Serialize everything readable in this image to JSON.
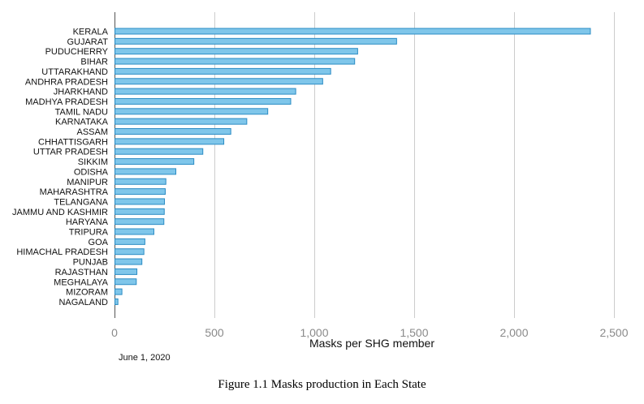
{
  "chart_data": {
    "type": "bar",
    "orientation": "horizontal",
    "categories": [
      "KERALA",
      "GUJARAT",
      "PUDUCHERRY",
      "BIHAR",
      "UTTARAKHAND",
      "ANDHRA PRADESH",
      "JHARKHAND",
      "MADHYA PRADESH",
      "TAMIL NADU",
      "KARNATAKA",
      "ASSAM",
      "CHHATTISGARH",
      "UTTAR PRADESH",
      "SIKKIM",
      "ODISHA",
      "MANIPUR",
      "MAHARASHTRA",
      "TELANGANA",
      "JAMMU AND KASHMIR",
      "HARYANA",
      "TRIPURA",
      "GOA",
      "HIMACHAL PRADESH",
      "PUNJAB",
      "RAJASTHAN",
      "MEGHALAYA",
      "MIZORAM",
      "NAGALAND"
    ],
    "values": [
      2380,
      1410,
      1215,
      1200,
      1080,
      1040,
      905,
      880,
      765,
      660,
      580,
      545,
      440,
      395,
      305,
      255,
      252,
      248,
      247,
      245,
      195,
      150,
      145,
      135,
      110,
      107,
      35,
      15
    ],
    "xlabel": "Masks per SHG member",
    "ylabel": "",
    "xlim": [
      0,
      2500
    ],
    "xticks": [
      0,
      500,
      1000,
      1500,
      2000,
      2500
    ],
    "xtick_labels": [
      "0",
      "500",
      "1,000",
      "1,500",
      "2,000",
      "2,500"
    ],
    "grid": "vertical",
    "bar_color": "#7fc6ea",
    "bar_stroke": "#2b8cc4",
    "date_note": "June 1, 2020"
  },
  "caption": "Figure 1.1 Masks production in Each State"
}
